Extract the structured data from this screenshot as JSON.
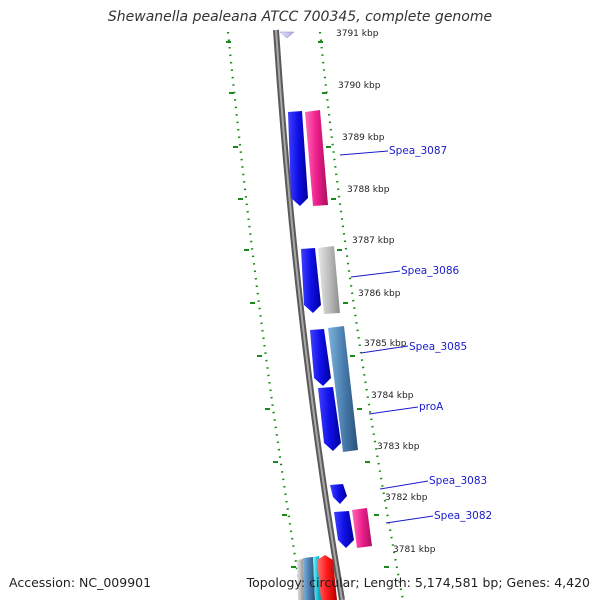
{
  "title": "Shewanella pealeana ATCC 700345, complete genome",
  "ruler_labels": [
    "3791 kbp",
    "3790 kbp",
    "3789 kbp",
    "3788 kbp",
    "3787 kbp",
    "3786 kbp",
    "3785 kbp",
    "3784 kbp",
    "3783 kbp",
    "3782 kbp",
    "3781 kbp"
  ],
  "gene_labels": [
    "Spea_3087",
    "Spea_3086",
    "Spea_3085",
    "proA",
    "Spea_3083",
    "Spea_3082"
  ],
  "colors": {
    "backbone": "#7a7a7a",
    "forward_strand": "#1010e8",
    "magenta": "#ee1f8c",
    "gray": "#bdbdbd",
    "steelblue": "#4a7fb0",
    "tick_green": "#1a8a1a",
    "label_blue": "#1a1acc",
    "red": "#ff1a1a",
    "cyan": "#11c6d8"
  },
  "footer": {
    "accession": "Accession: NC_009901",
    "topology": "Topology: circular; Length: 5,174,581 bp; Genes: 4,420"
  }
}
